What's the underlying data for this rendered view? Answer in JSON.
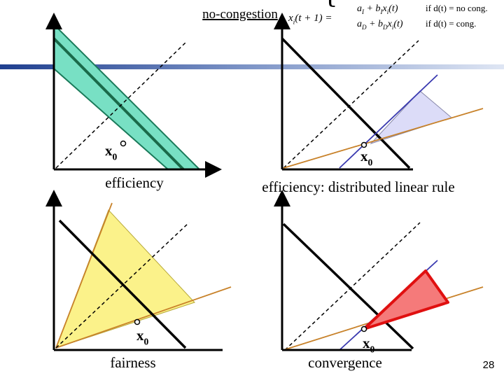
{
  "header": {
    "title": "no-congestion",
    "formula": {
      "lhs": [
        "x",
        "i",
        "(t + 1) ="
      ],
      "cases": [
        {
          "expr": [
            "a",
            "I",
            " + b",
            "I",
            "x",
            "i",
            "(t)"
          ],
          "condition": "if  d(t) = no cong."
        },
        {
          "expr": [
            "a",
            "D",
            " + b",
            "D",
            "x",
            "i",
            "(t)"
          ],
          "condition": "if  d(t) = cong."
        }
      ]
    }
  },
  "panels": [
    {
      "caption": "efficiency",
      "point": [
        "x",
        "0"
      ]
    },
    {
      "caption": "efficiency: distributed linear rule",
      "point": [
        "x",
        "0"
      ]
    },
    {
      "caption": "fairness",
      "point": [
        "x",
        "0"
      ]
    },
    {
      "caption": "convergence",
      "point": [
        "x",
        "0"
      ]
    }
  ],
  "page_number": "28"
}
